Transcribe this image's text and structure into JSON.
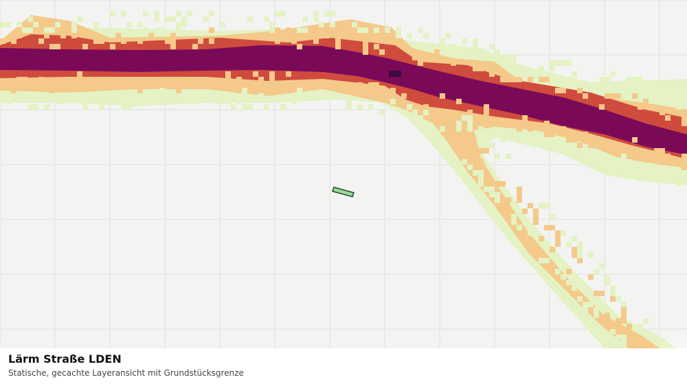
{
  "caption": {
    "title": "Lärm Straße LDEN",
    "subtitle": "Statische, gecachte Layeransicht mit Grundstücksgrenze"
  },
  "map": {
    "grid_color": "#dfe1dd",
    "background_color": "#f3f4f2",
    "noise_class_colors": [
      "#e4f2c4",
      "#f4c98a",
      "#cf4b3e",
      "#7a0a57",
      "#3b0a40"
    ],
    "parcel": {
      "fill": "#9ed39a",
      "stroke": "#1e4a2a"
    }
  }
}
